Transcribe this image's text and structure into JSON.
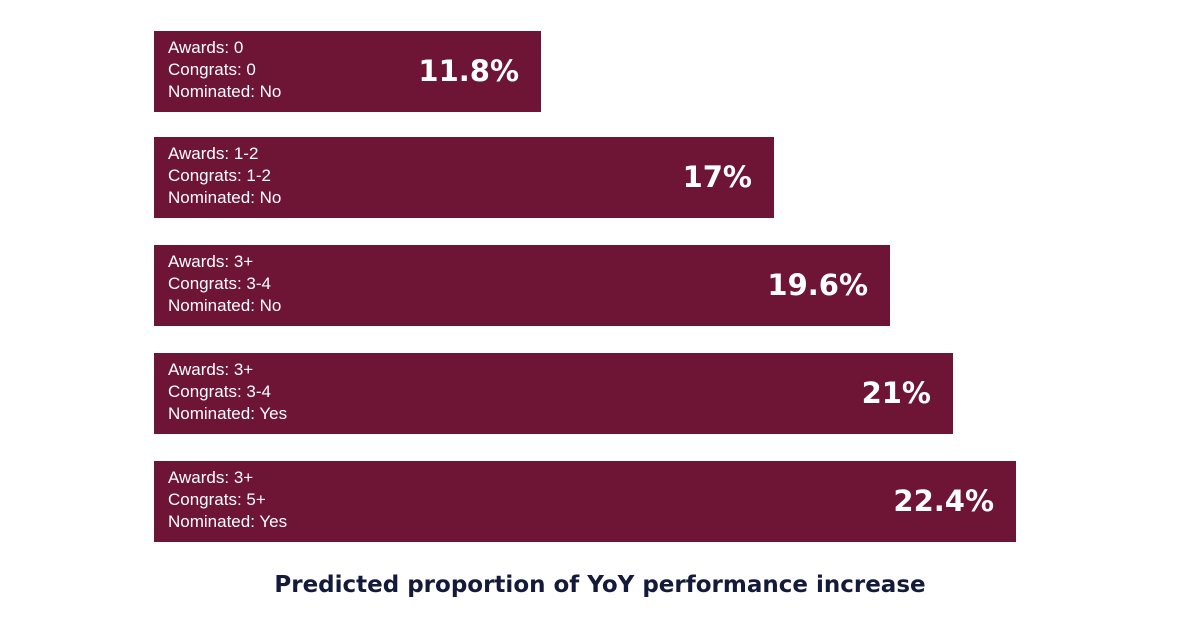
{
  "chart_data": {
    "type": "bar",
    "orientation": "horizontal",
    "title": "Predicted proportion of YoY performance increase",
    "categories": [
      [
        "Awards: 0",
        "Congrats: 0",
        "Nominated: No"
      ],
      [
        "Awards: 1-2",
        "Congrats: 1-2",
        "Nominated: No"
      ],
      [
        "Awards: 3+",
        "Congrats: 3-4",
        "Nominated: No"
      ],
      [
        "Awards: 3+",
        "Congrats: 3-4",
        "Nominated: Yes"
      ],
      [
        "Awards: 3+",
        "Congrats: 5+",
        "Nominated: Yes"
      ]
    ],
    "values": [
      11.8,
      17,
      19.6,
      21,
      22.4
    ],
    "data_labels": [
      "11.8%",
      "17%",
      "19.6%",
      "21%",
      "22.4%"
    ],
    "bar_color": "#6e1434",
    "grid": false,
    "legend": "none"
  }
}
